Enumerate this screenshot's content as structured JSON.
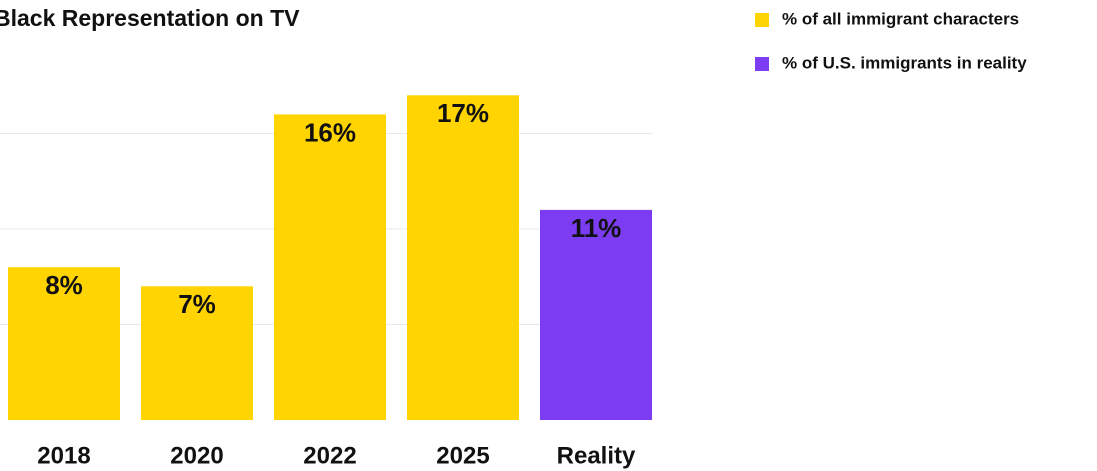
{
  "chart_data": {
    "type": "bar",
    "title": "Black Representation on TV",
    "categories": [
      "2018",
      "2020",
      "2022",
      "2025",
      "Reality"
    ],
    "series": [
      {
        "name": "% of all immigrant characters",
        "color": "#ffd400",
        "values": [
          8,
          7,
          16,
          17,
          null
        ],
        "value_labels": [
          "8%",
          "7%",
          "16%",
          "17%",
          null
        ]
      },
      {
        "name": "% of U.S. immigrants in reality",
        "color": "#7b3cf2",
        "values": [
          null,
          null,
          null,
          null,
          11
        ],
        "value_labels": [
          null,
          null,
          null,
          null,
          "11%"
        ]
      }
    ],
    "ylim": [
      0,
      20
    ],
    "yticks": [
      5,
      10,
      15
    ],
    "grid": true,
    "tick_labels": false,
    "legend": "top-right"
  }
}
